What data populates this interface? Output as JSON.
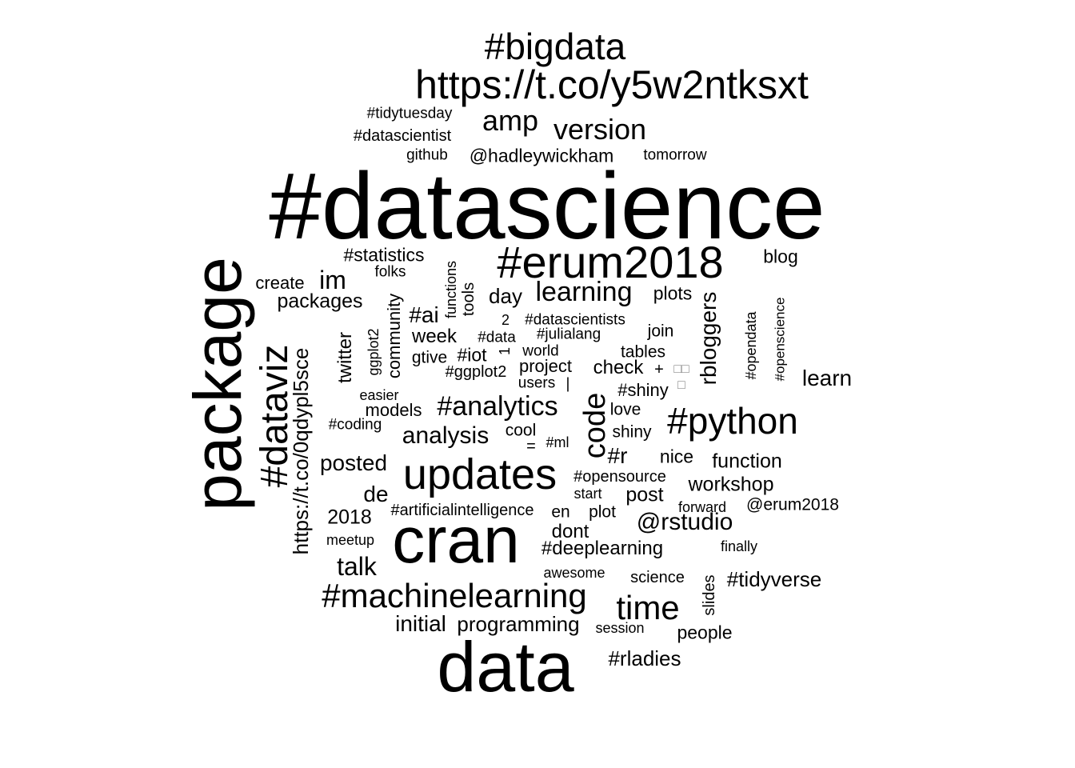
{
  "words": [
    {
      "text": "#datascience",
      "weight": 100
    },
    {
      "text": "package",
      "weight": 70
    },
    {
      "text": "data",
      "weight": 72
    },
    {
      "text": "cran",
      "weight": 68
    },
    {
      "text": "https://t.co/y5w2ntksxt",
      "weight": 48
    },
    {
      "text": "#bigdata",
      "weight": 44
    },
    {
      "text": "#erum2018",
      "weight": 52
    },
    {
      "text": "updates",
      "weight": 52
    },
    {
      "text": "#dataviz",
      "weight": 46
    },
    {
      "text": "#python",
      "weight": 44
    },
    {
      "text": "#machinelearning",
      "weight": 42
    },
    {
      "text": "time",
      "weight": 40
    },
    {
      "text": "code",
      "weight": 36
    },
    {
      "text": "amp",
      "weight": 36
    },
    {
      "text": "version",
      "weight": 36
    },
    {
      "text": "learning",
      "weight": 34
    },
    {
      "text": "#analytics",
      "weight": 32
    },
    {
      "text": "analysis",
      "weight": 30
    },
    {
      "text": "talk",
      "weight": 30
    },
    {
      "text": "im",
      "weight": 30
    },
    {
      "text": "https://t.co/0qdypl5sce",
      "weight": 28
    },
    {
      "text": "@rstudio",
      "weight": 28
    },
    {
      "text": "de",
      "weight": 28
    },
    {
      "text": "rbloggers",
      "weight": 26
    },
    {
      "text": "learn",
      "weight": 26
    },
    {
      "text": "posted",
      "weight": 26
    },
    {
      "text": "#ai",
      "weight": 26
    },
    {
      "text": "#r",
      "weight": 24
    },
    {
      "text": "packages",
      "weight": 24
    },
    {
      "text": "initial",
      "weight": 24
    },
    {
      "text": "programming",
      "weight": 24
    },
    {
      "text": "workshop",
      "weight": 24
    },
    {
      "text": "function",
      "weight": 24
    },
    {
      "text": "post",
      "weight": 22
    },
    {
      "text": "2018",
      "weight": 22
    },
    {
      "text": "twitter",
      "weight": 22
    },
    {
      "text": "community",
      "weight": 22
    },
    {
      "text": "day",
      "weight": 22
    },
    {
      "text": "#tidyverse",
      "weight": 22
    },
    {
      "text": "#deeplearning",
      "weight": 22
    },
    {
      "text": "dont",
      "weight": 22
    },
    {
      "text": "check",
      "weight": 22
    },
    {
      "text": "#rladies",
      "weight": 22
    },
    {
      "text": "people",
      "weight": 20
    },
    {
      "text": "plots",
      "weight": 20
    },
    {
      "text": "nice",
      "weight": 20
    },
    {
      "text": "@hadleywickham",
      "weight": 20
    },
    {
      "text": "blog",
      "weight": 20
    },
    {
      "text": "#statistics",
      "weight": 20
    },
    {
      "text": "week",
      "weight": 20
    },
    {
      "text": "#iot",
      "weight": 20
    },
    {
      "text": "#shiny",
      "weight": 20
    },
    {
      "text": "project",
      "weight": 20
    },
    {
      "text": "models",
      "weight": 20
    },
    {
      "text": "love",
      "weight": 18
    },
    {
      "text": "shiny",
      "weight": 18
    },
    {
      "text": "cool",
      "weight": 18
    },
    {
      "text": "join",
      "weight": 18
    },
    {
      "text": "tables",
      "weight": 18
    },
    {
      "text": "plot",
      "weight": 18
    },
    {
      "text": "en",
      "weight": 18
    },
    {
      "text": "slides",
      "weight": 18
    },
    {
      "text": "tools",
      "weight": 18
    },
    {
      "text": "create",
      "weight": 18
    },
    {
      "text": "gtive",
      "weight": 18
    },
    {
      "text": "#ggplot2",
      "weight": 18
    },
    {
      "text": "#artificialintelligence",
      "weight": 18
    },
    {
      "text": "@erum2018",
      "weight": 18
    },
    {
      "text": "#opensource",
      "weight": 18
    },
    {
      "text": "science",
      "weight": 18
    },
    {
      "text": "#datascientist",
      "weight": 17
    },
    {
      "text": "#tidytuesday",
      "weight": 17
    },
    {
      "text": "github",
      "weight": 17
    },
    {
      "text": "tomorrow",
      "weight": 17
    },
    {
      "text": "folks",
      "weight": 17
    },
    {
      "text": "functions",
      "weight": 17
    },
    {
      "text": "#datascientists",
      "weight": 17
    },
    {
      "text": "#data",
      "weight": 17
    },
    {
      "text": "#julialang",
      "weight": 17
    },
    {
      "text": "world",
      "weight": 17
    },
    {
      "text": "users",
      "weight": 17
    },
    {
      "text": "#opendata",
      "weight": 17
    },
    {
      "text": "#openscience",
      "weight": 17
    },
    {
      "text": "ggplot2",
      "weight": 17
    },
    {
      "text": "easier",
      "weight": 17
    },
    {
      "text": "#coding",
      "weight": 17
    },
    {
      "text": "#ml",
      "weight": 17
    },
    {
      "text": "start",
      "weight": 17
    },
    {
      "text": "forward",
      "weight": 17
    },
    {
      "text": "meetup",
      "weight": 17
    },
    {
      "text": "finally",
      "weight": 17
    },
    {
      "text": "awesome",
      "weight": 17
    },
    {
      "text": "session",
      "weight": 17
    },
    {
      "text": "2",
      "weight": 17
    },
    {
      "text": "1",
      "weight": 17
    },
    {
      "text": "+",
      "weight": 17
    },
    {
      "text": "=",
      "weight": 17
    },
    {
      "text": "|",
      "weight": 17
    },
    {
      "text": "□□",
      "weight": 17
    },
    {
      "text": "□",
      "weight": 17
    }
  ]
}
